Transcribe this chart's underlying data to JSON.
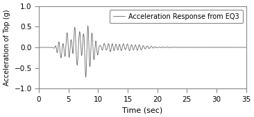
{
  "title": "",
  "xlabel": "Time (sec)",
  "ylabel": "Acceleration of Top (g)",
  "xlim": [
    0,
    35
  ],
  "ylim": [
    -1,
    1
  ],
  "xticks": [
    0,
    5,
    10,
    15,
    20,
    25,
    30,
    35
  ],
  "yticks": [
    -1,
    -0.5,
    0,
    0.5,
    1
  ],
  "legend_label": "Acceleration Response from EQ3",
  "line_color": "#666666",
  "line_width": 0.6,
  "background_color": "#ffffff",
  "dt": 0.01,
  "duration": 35.0,
  "figsize": [
    3.66,
    1.68
  ],
  "dpi": 100
}
